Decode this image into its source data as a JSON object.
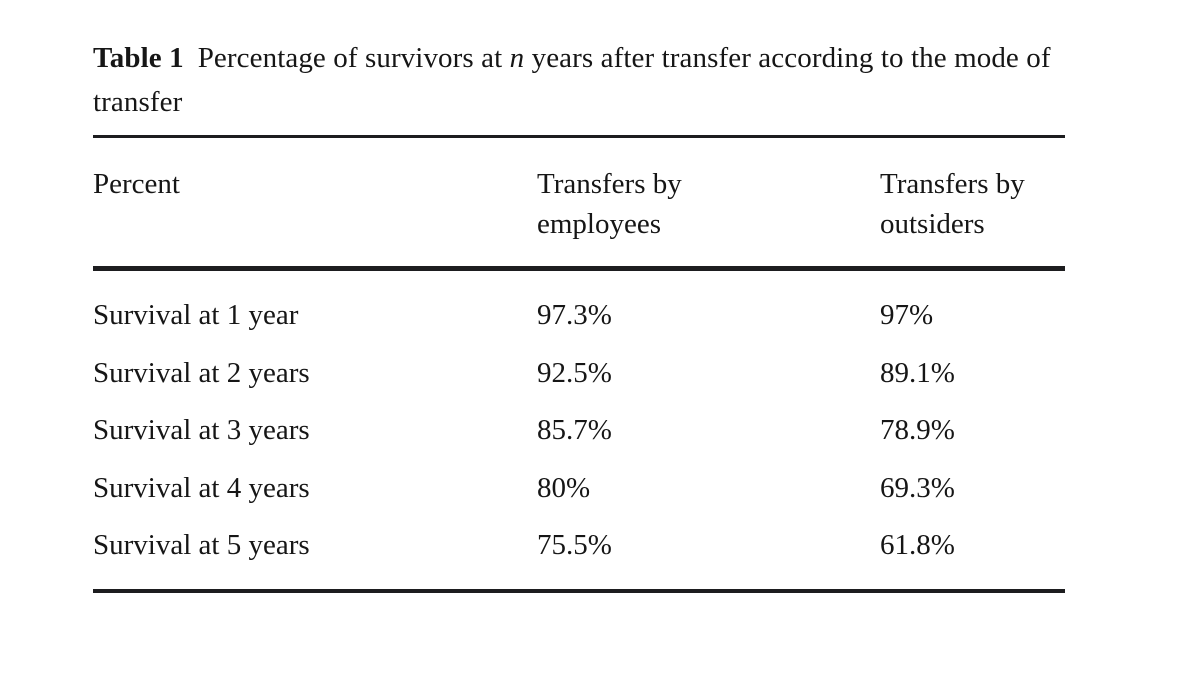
{
  "table": {
    "label": "Table 1",
    "caption_part1": "Percentage of survivors at ",
    "caption_italic": "n",
    "caption_part2": " years after transfer according to the mode of transfer",
    "columns": [
      "Percent",
      "Transfers by\nemployees",
      "Transfers by\noutsiders"
    ],
    "rows": [
      [
        "Survival at 1 year",
        "97.3%",
        "97%"
      ],
      [
        "Survival at 2 years",
        "92.5%",
        "89.1%"
      ],
      [
        "Survival at 3 years",
        "85.7%",
        "78.9%"
      ],
      [
        "Survival at 4 years",
        "80%",
        "69.3%"
      ],
      [
        "Survival at 5 years",
        "75.5%",
        "61.8%"
      ]
    ],
    "colors": {
      "text": "#161616",
      "rule": "#1d1d1f",
      "background": "#ffffff"
    }
  }
}
